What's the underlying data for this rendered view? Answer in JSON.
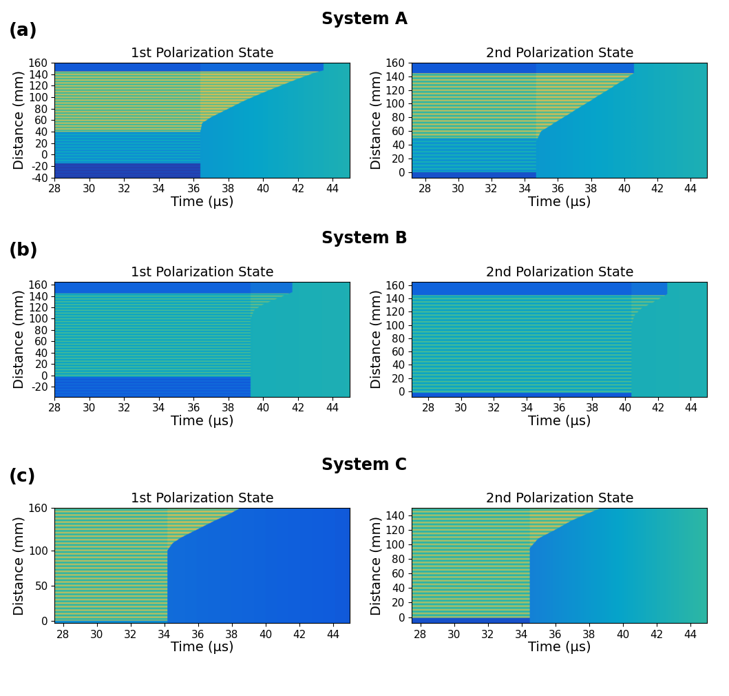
{
  "chart_data": [
    {
      "type": "heatmap",
      "panel": "(a)",
      "system": "System A",
      "title": "1st Polarization State",
      "x_label": "Time (µs)",
      "y_label": "Distance (mm)",
      "xlim": [
        28,
        45
      ],
      "xticks": [
        28,
        30,
        32,
        34,
        36,
        38,
        40,
        42,
        44
      ],
      "ylim": [
        -40,
        160
      ],
      "yticks": [
        -40,
        -20,
        0,
        20,
        40,
        60,
        80,
        100,
        120,
        140,
        160
      ],
      "color_range": [
        0,
        1
      ],
      "stripe_period": 5,
      "bands": [
        [
          -40,
          -15,
          0.08,
          true
        ],
        [
          -15,
          40,
          0.42,
          true
        ],
        [
          40,
          145,
          0.75,
          true
        ],
        [
          145,
          160,
          0.12,
          false
        ]
      ],
      "cut_time": 36.4,
      "front": [
        [
          36.4,
          40
        ],
        [
          36.5,
          55
        ],
        [
          37,
          65
        ],
        [
          38,
          80
        ],
        [
          39,
          95
        ],
        [
          40,
          108
        ],
        [
          41,
          120
        ],
        [
          42,
          132
        ],
        [
          43,
          143
        ],
        [
          43.5,
          147
        ]
      ],
      "after_value": [
        0.22,
        0.45
      ]
    },
    {
      "type": "heatmap",
      "panel": "(a)",
      "system": "System A",
      "title": "2nd Polarization State",
      "x_label": "Time (µs)",
      "y_label": "Distance (mm)",
      "xlim": [
        27.2,
        45
      ],
      "xticks": [
        28,
        30,
        32,
        34,
        36,
        38,
        40,
        42,
        44
      ],
      "ylim": [
        -8,
        160
      ],
      "yticks": [
        0,
        20,
        40,
        60,
        80,
        100,
        120,
        140,
        160
      ],
      "color_range": [
        0,
        1
      ],
      "stripe_period": 5,
      "bands": [
        [
          -8,
          0,
          0.1,
          false
        ],
        [
          0,
          50,
          0.45,
          true
        ],
        [
          50,
          145,
          0.72,
          true
        ],
        [
          145,
          160,
          0.12,
          false
        ]
      ],
      "cut_time": 34.7,
      "front": [
        [
          34.7,
          45
        ],
        [
          35,
          60
        ],
        [
          36,
          75
        ],
        [
          37,
          90
        ],
        [
          38,
          105
        ],
        [
          39,
          120
        ],
        [
          40,
          135
        ],
        [
          40.6,
          145
        ]
      ],
      "after_value": [
        0.25,
        0.45
      ]
    },
    {
      "type": "heatmap",
      "panel": "(b)",
      "system": "System B",
      "title": "1st Polarization State",
      "x_label": "Time (µs)",
      "y_label": "Distance (mm)",
      "xlim": [
        28,
        45
      ],
      "xticks": [
        28,
        30,
        32,
        34,
        36,
        38,
        40,
        42,
        44
      ],
      "ylim": [
        -38,
        165
      ],
      "yticks": [
        -20,
        0,
        20,
        40,
        60,
        80,
        100,
        120,
        140,
        160
      ],
      "color_range": [
        0,
        1
      ],
      "stripe_period": 5,
      "bands": [
        [
          -38,
          -3,
          0.18,
          true
        ],
        [
          -3,
          145,
          0.55,
          true
        ],
        [
          145,
          165,
          0.15,
          false
        ]
      ],
      "cut_time": 39.3,
      "front": [
        [
          39.3,
          100
        ],
        [
          39.5,
          115
        ],
        [
          40,
          125
        ],
        [
          41,
          138
        ],
        [
          41.7,
          147
        ]
      ],
      "after_value": [
        0.4,
        0.45
      ]
    },
    {
      "type": "heatmap",
      "panel": "(b)",
      "system": "System B",
      "title": "2nd Polarization State",
      "x_label": "Time (µs)",
      "y_label": "Distance (mm)",
      "xlim": [
        27,
        45
      ],
      "xticks": [
        28,
        30,
        32,
        34,
        36,
        38,
        40,
        42,
        44
      ],
      "ylim": [
        -8,
        165
      ],
      "yticks": [
        0,
        20,
        40,
        60,
        80,
        100,
        120,
        140,
        160
      ],
      "color_range": [
        0,
        1
      ],
      "stripe_period": 5,
      "bands": [
        [
          -8,
          -2,
          0.12,
          false
        ],
        [
          -2,
          145,
          0.55,
          true
        ],
        [
          145,
          165,
          0.15,
          false
        ]
      ],
      "cut_time": 40.4,
      "front": [
        [
          40.4,
          100
        ],
        [
          40.6,
          115
        ],
        [
          41,
          125
        ],
        [
          42,
          138
        ],
        [
          42.6,
          147
        ]
      ],
      "after_value": [
        0.4,
        0.45
      ]
    },
    {
      "type": "heatmap",
      "panel": "(c)",
      "system": "System C",
      "title": "1st Polarization State",
      "x_label": "Time (µs)",
      "y_label": "Distance (mm)",
      "xlim": [
        27.5,
        45
      ],
      "xticks": [
        28,
        30,
        32,
        34,
        36,
        38,
        40,
        42,
        44
      ],
      "ylim": [
        -3,
        160
      ],
      "yticks": [
        0,
        50,
        100,
        160
      ],
      "color_range": [
        0,
        1
      ],
      "stripe_period": 5,
      "bands": [
        [
          -3,
          0,
          0.3,
          false
        ],
        [
          0,
          160,
          0.72,
          true
        ]
      ],
      "cut_time": 34.2,
      "front": [
        [
          34.2,
          100
        ],
        [
          34.5,
          110
        ],
        [
          35,
          118
        ],
        [
          36,
          130
        ],
        [
          37,
          142
        ],
        [
          38,
          153
        ],
        [
          38.5,
          160
        ]
      ],
      "after_value": [
        0.22,
        0.12
      ]
    },
    {
      "type": "heatmap",
      "panel": "(c)",
      "system": "System C",
      "title": "2nd Polarization State",
      "x_label": "Time (µs)",
      "y_label": "Distance (mm)",
      "xlim": [
        27.5,
        45
      ],
      "xticks": [
        28,
        30,
        32,
        34,
        36,
        38,
        40,
        42,
        44
      ],
      "ylim": [
        -8,
        150
      ],
      "yticks": [
        0,
        20,
        40,
        60,
        80,
        100,
        120,
        140
      ],
      "color_range": [
        0,
        1
      ],
      "stripe_period": 5,
      "bands": [
        [
          -8,
          -1,
          0.1,
          false
        ],
        [
          -1,
          150,
          0.7,
          true
        ]
      ],
      "cut_time": 34.5,
      "front": [
        [
          34.5,
          95
        ],
        [
          35,
          108
        ],
        [
          36,
          120
        ],
        [
          37,
          133
        ],
        [
          38,
          143
        ],
        [
          38.7,
          150
        ]
      ],
      "after_value": [
        0.08,
        0.5
      ]
    }
  ]
}
